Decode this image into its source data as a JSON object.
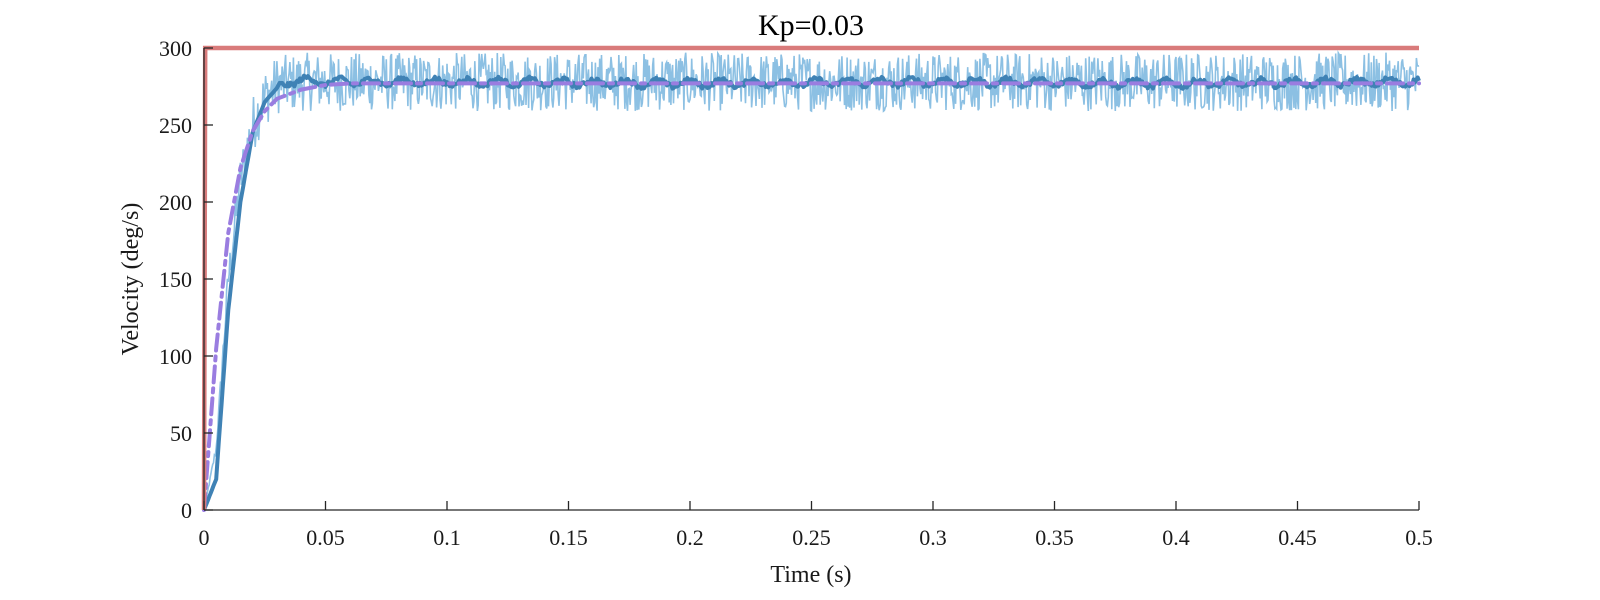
{
  "chart_data": {
    "type": "line",
    "title": "Kp=0.03",
    "xlabel": "Time (s)",
    "ylabel": "Velocity (deg/s)",
    "xlim": [
      0,
      0.5
    ],
    "ylim": [
      0,
      300
    ],
    "xticks": [
      0,
      0.05,
      0.1,
      0.15,
      0.2,
      0.25,
      0.3,
      0.35,
      0.4,
      0.45,
      0.5
    ],
    "xtick_labels": [
      "0",
      "0.05",
      "0.1",
      "0.15",
      "0.2",
      "0.25",
      "0.3",
      "0.35",
      "0.4",
      "0.45",
      "0.5"
    ],
    "yticks": [
      0,
      50,
      100,
      150,
      200,
      250,
      300
    ],
    "ytick_labels": [
      "0",
      "50",
      "100",
      "150",
      "200",
      "250",
      "300"
    ],
    "grid": false,
    "legend": "none",
    "series": [
      {
        "key": "reference",
        "style": "solid",
        "color": "#d97b7b",
        "x": [
          0,
          0.0005,
          0.5
        ],
        "y": [
          0,
          300,
          300
        ]
      },
      {
        "key": "measured_raw",
        "style": "noisy",
        "color": "#8cc0e3",
        "x": [
          0,
          0.005,
          0.01,
          0.015,
          0.02,
          0.025,
          0.03,
          0.04,
          0.05,
          0.1,
          0.2,
          0.3,
          0.4,
          0.5
        ],
        "y": [
          0,
          40,
          150,
          215,
          250,
          268,
          276,
          278,
          278,
          278,
          278,
          278,
          278,
          278
        ],
        "noise_range": [
          258,
          298
        ]
      },
      {
        "key": "measured_filtered",
        "style": "solid",
        "color": "#3f82b5",
        "x": [
          0,
          0.005,
          0.01,
          0.015,
          0.02,
          0.025,
          0.03,
          0.035,
          0.04,
          0.05,
          0.1,
          0.2,
          0.3,
          0.4,
          0.5
        ],
        "y": [
          0,
          20,
          130,
          200,
          245,
          265,
          274,
          278,
          279,
          278,
          278,
          277,
          278,
          277,
          278
        ]
      },
      {
        "key": "model",
        "style": "dashdot",
        "color": "#9a7de0",
        "x": [
          0,
          0.005,
          0.01,
          0.015,
          0.02,
          0.025,
          0.03,
          0.04,
          0.05,
          0.06,
          0.1,
          0.2,
          0.3,
          0.4,
          0.5
        ],
        "y": [
          0,
          105,
          180,
          222,
          246,
          259,
          267,
          273,
          276,
          277,
          277,
          277,
          277,
          277,
          277
        ]
      }
    ]
  }
}
